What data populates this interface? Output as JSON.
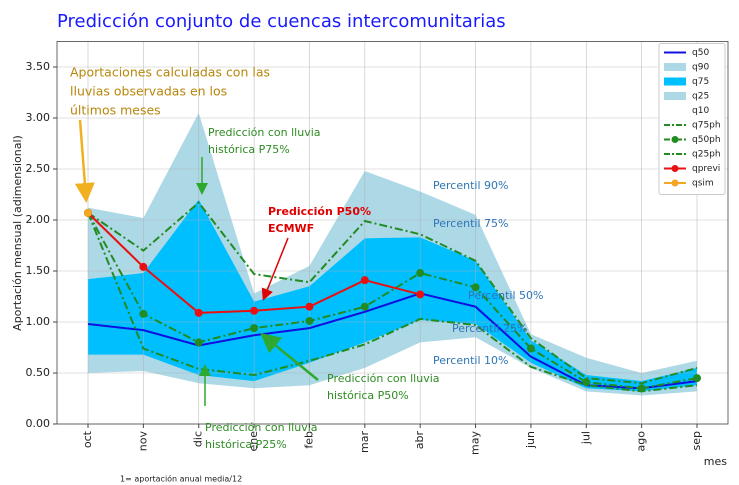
{
  "chart_data": {
    "type": "line",
    "title": "Predicción conjunto de cuencas intercomunitarias",
    "y_label": "Aportación mensual (adimensional)",
    "x_label": "mes",
    "footnote": "1= aportación anual media/12",
    "categories": [
      "oct",
      "nov",
      "dic",
      "ene",
      "feb",
      "mar",
      "abr",
      "may",
      "jun",
      "jul",
      "ago",
      "sep"
    ],
    "ylim": [
      0,
      3.75
    ],
    "yticks": [
      {
        "value": 0,
        "label": "0.00"
      },
      {
        "value": 0.5,
        "label": "0.50"
      },
      {
        "value": 1,
        "label": "1.00"
      },
      {
        "value": 1.5,
        "label": "1.50"
      },
      {
        "value": 2,
        "label": "2.00"
      },
      {
        "value": 2.5,
        "label": "2.50"
      },
      {
        "value": 3,
        "label": "3.00"
      },
      {
        "value": 3.5,
        "label": "3.50"
      }
    ],
    "grid": true,
    "legend": "upper right",
    "series": [
      {
        "name": "q50",
        "color": "#1010e0",
        "values": [
          0.98,
          0.92,
          0.77,
          0.87,
          0.94,
          1.1,
          1.28,
          1.15,
          0.66,
          0.38,
          0.35,
          0.42
        ]
      },
      {
        "name": "q90",
        "color": "#add8e6",
        "fill": true,
        "values": [
          2.12,
          2.02,
          3.05,
          1.28,
          1.55,
          2.48,
          2.28,
          2.05,
          0.88,
          0.65,
          0.5,
          0.62
        ]
      },
      {
        "name": "q75",
        "color": "#00bfff",
        "fill": true,
        "values": [
          1.42,
          1.48,
          2.2,
          1.2,
          1.35,
          1.82,
          1.83,
          1.6,
          0.82,
          0.48,
          0.42,
          0.55
        ]
      },
      {
        "name": "q25",
        "color": "#add8e6",
        "fill": true,
        "values": [
          0.68,
          0.68,
          0.48,
          0.42,
          0.6,
          0.8,
          1.02,
          0.98,
          0.6,
          0.35,
          0.32,
          0.38
        ]
      },
      {
        "name": "q10",
        "color": "#ffffff",
        "fill": true,
        "values": [
          0.5,
          0.52,
          0.4,
          0.35,
          0.38,
          0.55,
          0.8,
          0.85,
          0.55,
          0.32,
          0.28,
          0.32
        ]
      },
      {
        "name": "q75ph",
        "color": "#228b22",
        "dash": true,
        "values": [
          2.07,
          1.7,
          2.17,
          1.47,
          1.39,
          1.99,
          1.86,
          1.6,
          0.84,
          0.45,
          0.4,
          0.55
        ]
      },
      {
        "name": "q50ph",
        "color": "#228b22",
        "dash": true,
        "marker": true,
        "values": [
          2.07,
          1.08,
          0.8,
          0.94,
          1.01,
          1.15,
          1.48,
          1.34,
          0.74,
          0.41,
          0.35,
          0.45
        ]
      },
      {
        "name": "q25ph",
        "color": "#228b22",
        "dash": true,
        "values": [
          2.07,
          0.74,
          0.54,
          0.48,
          0.62,
          0.78,
          1.03,
          0.97,
          0.56,
          0.38,
          0.32,
          0.38
        ]
      },
      {
        "name": "qprevi",
        "color": "#e81010",
        "marker": true,
        "values": [
          2.07,
          1.54,
          1.09,
          1.11,
          1.15,
          1.41,
          1.27,
          null,
          null,
          null,
          null,
          null
        ]
      },
      {
        "name": "qsim",
        "color": "#f5a623",
        "marker": true,
        "values": [
          2.07,
          null,
          null,
          null,
          null,
          null,
          null,
          null,
          null,
          null,
          null,
          null
        ]
      }
    ],
    "percentile_labels": [
      "Percentil 90%",
      "Percentil 75%",
      "Percentil 50%",
      "Percentil 25%",
      "Percentil 10%"
    ],
    "annotations": [
      [
        "Aportaciones calculadas con las",
        "lluvias observadas en los",
        "últimos meses"
      ],
      [
        "Predicción con lluvia",
        "histórica P75%"
      ],
      [
        "Predicción P50%",
        "ECMWF"
      ],
      [
        "Predicción con lluvia",
        "histórica P50%"
      ],
      [
        "Predicción con lluvia",
        "histórica P25%"
      ]
    ]
  }
}
